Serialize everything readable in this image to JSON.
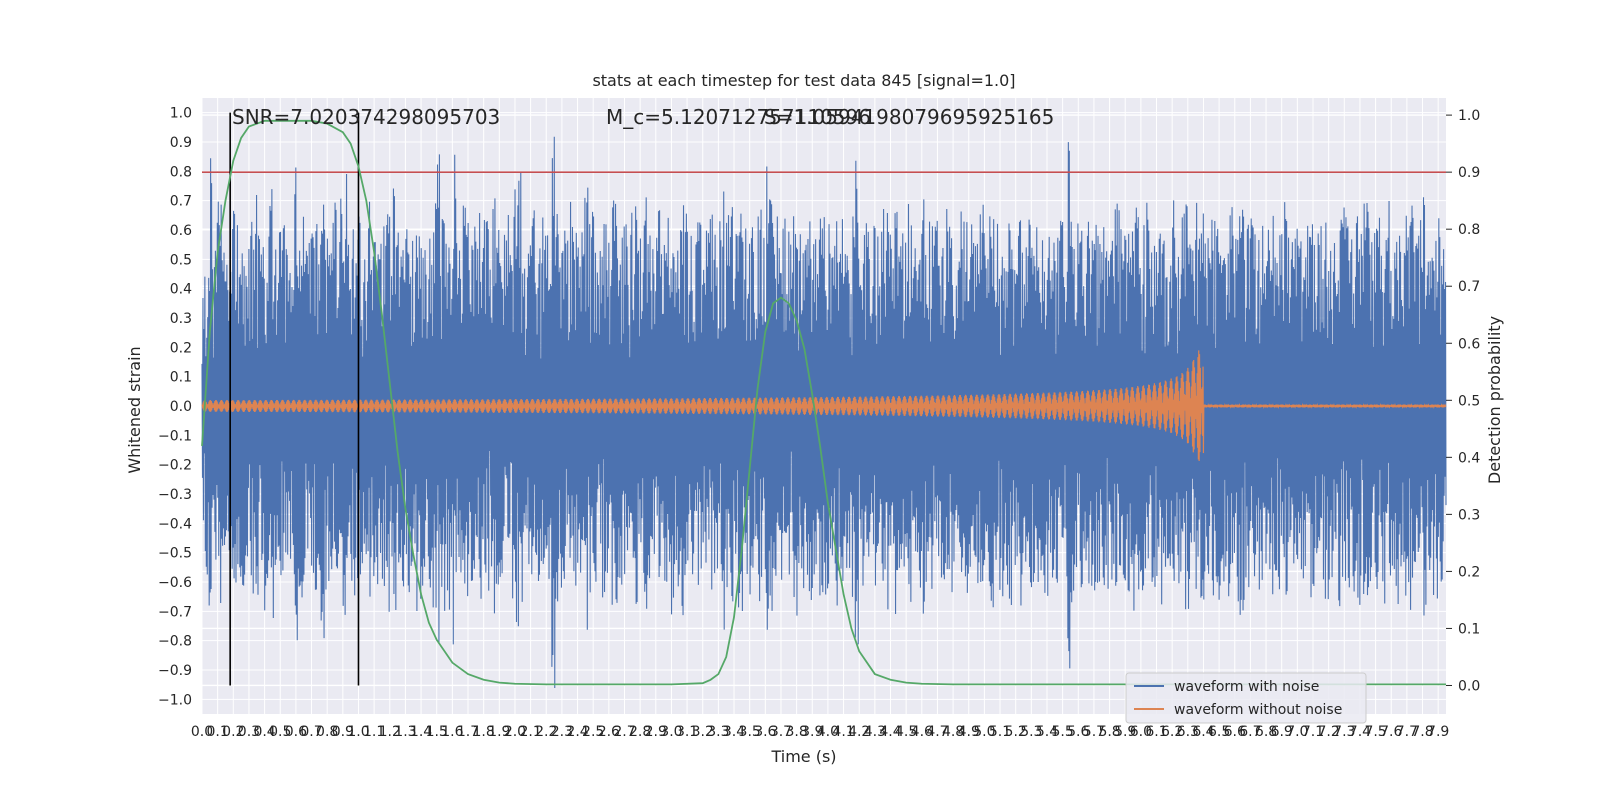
{
  "chart_data": {
    "type": "line",
    "title": "stats at each timestep for test data 845 [signal=1.0]",
    "xlabel": "Time (s)",
    "ylabel": "Whitened strain",
    "y2label": "Detection probability",
    "xlim": [
      0.0,
      7.95
    ],
    "ylim": [
      -1.05,
      1.05
    ],
    "y2lim": [
      -0.05,
      1.03
    ],
    "x_ticks": [
      "0.0",
      "0.1",
      "0.2",
      "0.3",
      "0.4",
      "0.5",
      "0.6",
      "0.7",
      "0.8",
      "0.9",
      "1.0",
      "1.1",
      "1.2",
      "1.3",
      "1.4",
      "1.5",
      "1.6",
      "1.7",
      "1.8",
      "1.9",
      "2.0",
      "2.1",
      "2.2",
      "2.3",
      "2.4",
      "2.5",
      "2.6",
      "2.7",
      "2.8",
      "2.9",
      "3.0",
      "3.1",
      "3.2",
      "3.3",
      "3.4",
      "3.5",
      "3.6",
      "3.7",
      "3.8",
      "3.9",
      "4.0",
      "4.1",
      "4.2",
      "4.3",
      "4.4",
      "4.5",
      "4.6",
      "4.7",
      "4.8",
      "4.9",
      "5.0",
      "5.1",
      "5.2",
      "5.3",
      "5.4",
      "5.5",
      "5.6",
      "5.7",
      "5.8",
      "5.9",
      "6.0",
      "6.1",
      "6.2",
      "6.3",
      "6.4",
      "6.5",
      "6.6",
      "6.7",
      "6.8",
      "6.9",
      "7.0",
      "7.1",
      "7.2",
      "7.3",
      "7.4",
      "7.5",
      "7.6",
      "7.7",
      "7.8",
      "7.9"
    ],
    "y_ticks": [
      "−1.0",
      "−0.9",
      "−0.8",
      "−0.7",
      "−0.6",
      "−0.5",
      "−0.4",
      "−0.3",
      "−0.2",
      "−0.1",
      "0.0",
      "0.1",
      "0.2",
      "0.3",
      "0.4",
      "0.5",
      "0.6",
      "0.7",
      "0.8",
      "0.9",
      "1.0"
    ],
    "y2_ticks": [
      "0.0",
      "0.1",
      "0.2",
      "0.3",
      "0.4",
      "0.5",
      "0.6",
      "0.7",
      "0.8",
      "0.9",
      "1.0"
    ],
    "annotations": [
      "SNR=7.020374298095703",
      "M_c=5.120712757110596",
      "S=1.0594198079695925165"
    ],
    "legend": {
      "placement": "bottom-right",
      "entries": [
        "waveform with noise",
        "waveform without noise"
      ]
    },
    "colors": {
      "noise": "#4c72b0",
      "clean": "#dd8452",
      "probability": "#55a868",
      "threshold": "#c44e52",
      "markers": "#000000",
      "plot_bg": "#eaeaf2"
    },
    "threshold_y2": 0.9,
    "marker_x": [
      0.18,
      1.0
    ],
    "series": [
      {
        "name": "waveform with noise",
        "axis": "left",
        "envelope_samples": [
          0.5,
          -0.6,
          0.85,
          -0.55,
          0.7,
          -0.78,
          0.6,
          -0.5,
          0.65,
          -0.7,
          0.75,
          -0.6,
          0.62,
          -0.55,
          0.68,
          -0.66,
          0.72,
          -0.6,
          0.58,
          -0.7,
          0.7,
          -0.8,
          0.6,
          -0.6,
          0.65,
          -0.58,
          0.55,
          -0.62,
          0.85,
          -0.84,
          0.7,
          -0.6,
          0.6,
          -0.7,
          0.66,
          -0.62,
          0.8,
          -0.7,
          0.6,
          -0.66,
          0.7,
          -0.6,
          0.72,
          -0.9,
          0.6,
          -0.64,
          0.68,
          -0.72,
          0.62,
          -0.6,
          0.7,
          -0.58,
          0.65,
          -0.7,
          0.6,
          -0.66,
          0.72,
          -0.6,
          0.75,
          -0.62,
          0.6,
          -0.7,
          0.66,
          -0.6,
          0.62,
          -0.72,
          0.7,
          -0.6,
          0.6,
          -0.66,
          0.72,
          -0.93,
          0.65,
          -0.7,
          0.7,
          -0.6,
          0.94,
          -0.62,
          0.6,
          -0.7,
          0.66,
          -0.64,
          0.62,
          -0.6,
          0.7,
          -0.66,
          0.68,
          -0.6,
          0.72,
          -0.7,
          0.6,
          -0.62,
          0.66,
          -0.6,
          0.75,
          -0.76,
          0.8,
          -0.7,
          0.65,
          -0.62,
          0.7,
          -0.6,
          0.6,
          -0.66,
          0.72,
          -0.6,
          1.0,
          -0.7,
          0.66,
          -0.62,
          0.6,
          -0.7,
          0.7,
          -0.66,
          0.62,
          -0.6,
          0.8,
          -0.64,
          0.68,
          -0.62,
          0.6,
          -0.66,
          0.7,
          -0.6,
          0.72,
          -0.7,
          0.62,
          -0.64,
          0.66,
          -0.6,
          0.7,
          -0.7,
          0.6,
          -0.66,
          0.72,
          -0.6,
          0.65,
          -0.62,
          0.7,
          -0.6,
          0.6,
          -0.66,
          0.72,
          -0.6,
          0.65,
          -0.8,
          0.7,
          -0.62,
          0.6,
          -0.7,
          0.66,
          -0.66,
          0.62,
          -0.6,
          0.7,
          -0.64,
          0.68,
          -0.62,
          0.8,
          -0.66,
          0.7,
          -0.6,
          0.72,
          -0.7,
          0.62,
          -0.64,
          0.66,
          -0.6,
          0.7,
          -0.7,
          0.6,
          -0.93,
          0.72,
          -0.6,
          0.65,
          -0.62,
          0.7,
          -0.6,
          0.6,
          -0.66,
          0.72,
          -0.6,
          0.65,
          -0.7,
          0.7,
          -0.62,
          0.6,
          -0.7,
          0.66,
          -0.66,
          0.62,
          -0.6,
          0.7,
          -0.64,
          0.68,
          -0.62,
          0.6,
          -0.66,
          0.85,
          -0.6,
          0.72,
          -0.7,
          0.62,
          -0.64,
          0.66,
          -0.6,
          0.7,
          -0.7,
          0.6,
          -0.66,
          0.72,
          -0.6,
          0.65,
          -0.62,
          0.7,
          -0.6,
          0.6,
          -0.66,
          0.72,
          -0.6,
          0.65,
          -0.7,
          0.7,
          -0.62,
          0.6,
          -0.7,
          0.66,
          -0.66,
          0.62,
          -0.6,
          0.7,
          -0.64,
          0.68,
          -0.62,
          0.6,
          -0.66,
          0.7,
          -0.6,
          0.72,
          -0.7,
          0.62,
          -0.64,
          0.66,
          -0.6,
          0.7,
          -0.7,
          0.6,
          -0.66,
          0.72,
          -0.6,
          0.65,
          -0.62,
          0.7,
          -0.6,
          0.6,
          -0.66,
          0.72,
          -0.6,
          0.65,
          -0.7,
          0.7,
          -0.62,
          0.9,
          -0.7,
          0.66,
          -0.66,
          0.62,
          -0.6,
          0.7,
          -0.64,
          0.68,
          -0.62,
          0.6,
          -0.66,
          0.7,
          -0.6,
          0.72,
          -0.7,
          0.62,
          -0.64,
          0.66,
          -0.6,
          0.7,
          -0.7,
          0.6,
          -0.66,
          0.72,
          -0.6,
          0.65,
          -0.62,
          0.7,
          -0.6,
          0.6,
          -0.66,
          0.72,
          -0.6,
          0.65,
          -0.7,
          0.7,
          -0.62,
          0.6,
          -0.7,
          0.66,
          -0.66,
          0.62,
          -0.6,
          0.7,
          -0.64,
          0.68,
          -0.62,
          0.6,
          -0.66,
          0.7,
          -0.6,
          0.72,
          -0.7,
          0.62,
          -0.64,
          0.66,
          -0.6,
          0.7,
          -0.7,
          0.6,
          -0.66,
          0.72,
          -0.6,
          0.65,
          -0.62,
          0.7,
          -0.6,
          0.6,
          -0.66,
          0.72,
          -0.6,
          0.65,
          -0.7,
          0.7,
          -0.62,
          0.6,
          -0.7,
          0.66,
          -0.66,
          0.62,
          -0.6,
          0.7,
          -0.64,
          0.68,
          -0.62,
          0.6,
          -0.66,
          0.7,
          -0.6,
          0.72,
          -0.7,
          0.62,
          -0.64,
          0.66,
          -0.6,
          0.7,
          -0.7,
          0.6,
          -0.66,
          0.72,
          -0.6,
          0.65,
          -0.62,
          0.7,
          -0.6,
          0.6,
          -0.66,
          0.72,
          -0.6,
          0.65,
          -0.7,
          0.7,
          -0.62,
          0.6,
          -0.7
        ]
      },
      {
        "name": "waveform without noise",
        "axis": "left",
        "x_range": [
          0.0,
          7.95
        ],
        "merger_x": 6.4,
        "start_amplitude": 0.02,
        "peak_amplitude": 0.19,
        "ringdown_amplitude": 0.005
      },
      {
        "name": "Detection probability",
        "axis": "right",
        "x": [
          0.0,
          0.05,
          0.1,
          0.15,
          0.2,
          0.25,
          0.3,
          0.35,
          0.4,
          0.45,
          0.5,
          0.6,
          0.7,
          0.8,
          0.9,
          0.95,
          1.0,
          1.05,
          1.1,
          1.15,
          1.2,
          1.25,
          1.3,
          1.35,
          1.4,
          1.45,
          1.5,
          1.6,
          1.7,
          1.8,
          1.9,
          2.0,
          2.2,
          2.4,
          2.6,
          2.8,
          3.0,
          3.2,
          3.25,
          3.3,
          3.35,
          3.4,
          3.45,
          3.5,
          3.55,
          3.6,
          3.65,
          3.7,
          3.75,
          3.8,
          3.85,
          3.9,
          3.95,
          4.0,
          4.05,
          4.1,
          4.15,
          4.2,
          4.3,
          4.4,
          4.5,
          4.6,
          4.8,
          5.0,
          5.5,
          6.0,
          6.5,
          7.0,
          7.5,
          7.95
        ],
        "y": [
          0.42,
          0.62,
          0.76,
          0.85,
          0.92,
          0.96,
          0.98,
          0.985,
          0.99,
          0.99,
          0.99,
          0.99,
          0.99,
          0.985,
          0.97,
          0.95,
          0.91,
          0.85,
          0.76,
          0.65,
          0.53,
          0.41,
          0.31,
          0.23,
          0.16,
          0.11,
          0.08,
          0.04,
          0.02,
          0.01,
          0.005,
          0.003,
          0.002,
          0.002,
          0.002,
          0.002,
          0.002,
          0.004,
          0.01,
          0.02,
          0.05,
          0.12,
          0.24,
          0.38,
          0.52,
          0.62,
          0.67,
          0.68,
          0.67,
          0.64,
          0.59,
          0.51,
          0.42,
          0.32,
          0.24,
          0.16,
          0.1,
          0.06,
          0.02,
          0.01,
          0.005,
          0.003,
          0.002,
          0.002,
          0.002,
          0.002,
          0.002,
          0.002,
          0.002,
          0.002
        ]
      }
    ]
  }
}
